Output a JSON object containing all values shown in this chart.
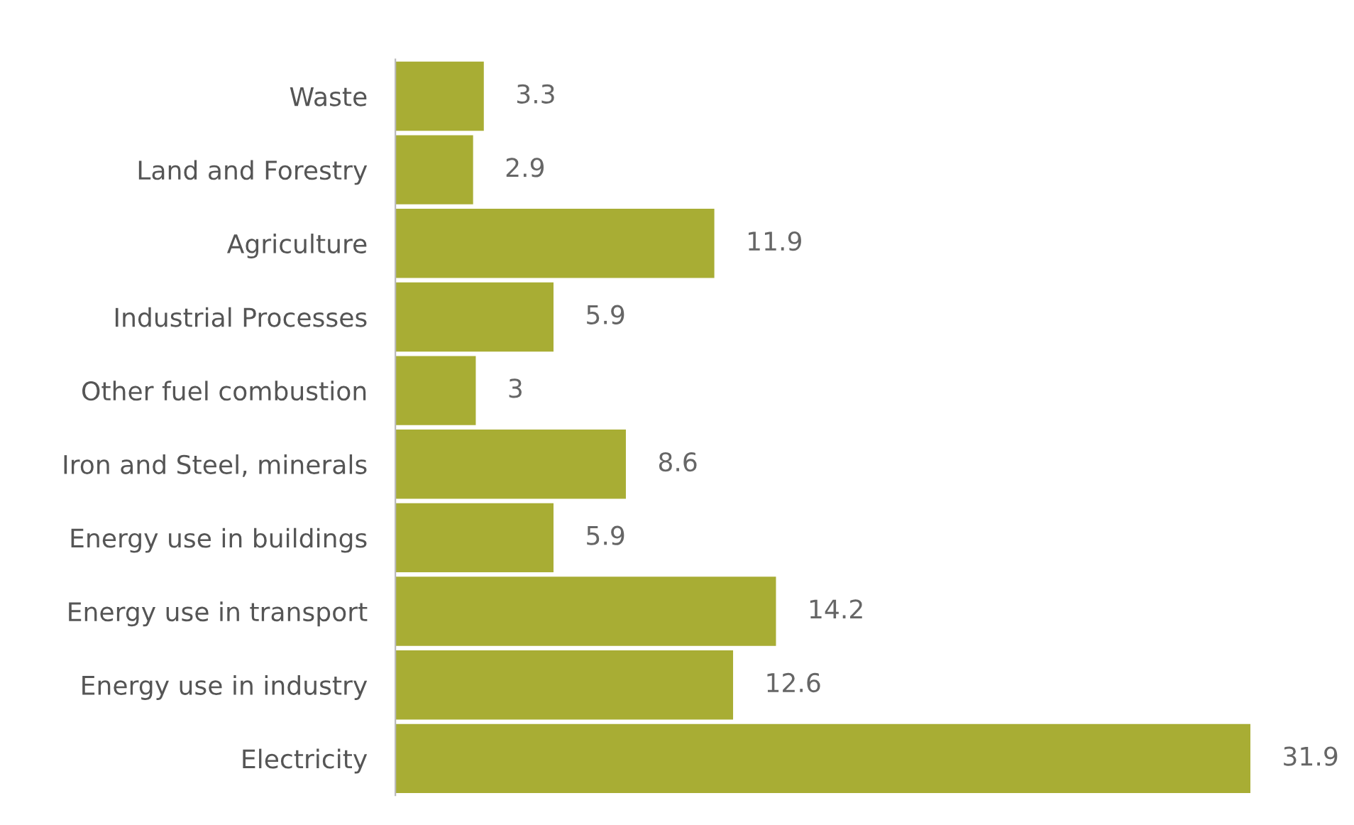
{
  "chart_data": {
    "type": "bar",
    "orientation": "horizontal",
    "categories": [
      "Waste",
      "Land and Forestry",
      "Agriculture",
      "Industrial Processes",
      "Other fuel combustion",
      "Iron and Steel, minerals",
      "Energy use in buildings",
      "Energy use in transport",
      "Energy use in industry",
      "Electricity"
    ],
    "values": [
      3.3,
      2.9,
      11.9,
      5.9,
      3,
      8.6,
      5.9,
      14.2,
      12.6,
      31.9
    ],
    "color": "#a8ad34",
    "data_labels": true,
    "tick_labels": "y",
    "grid": false
  }
}
